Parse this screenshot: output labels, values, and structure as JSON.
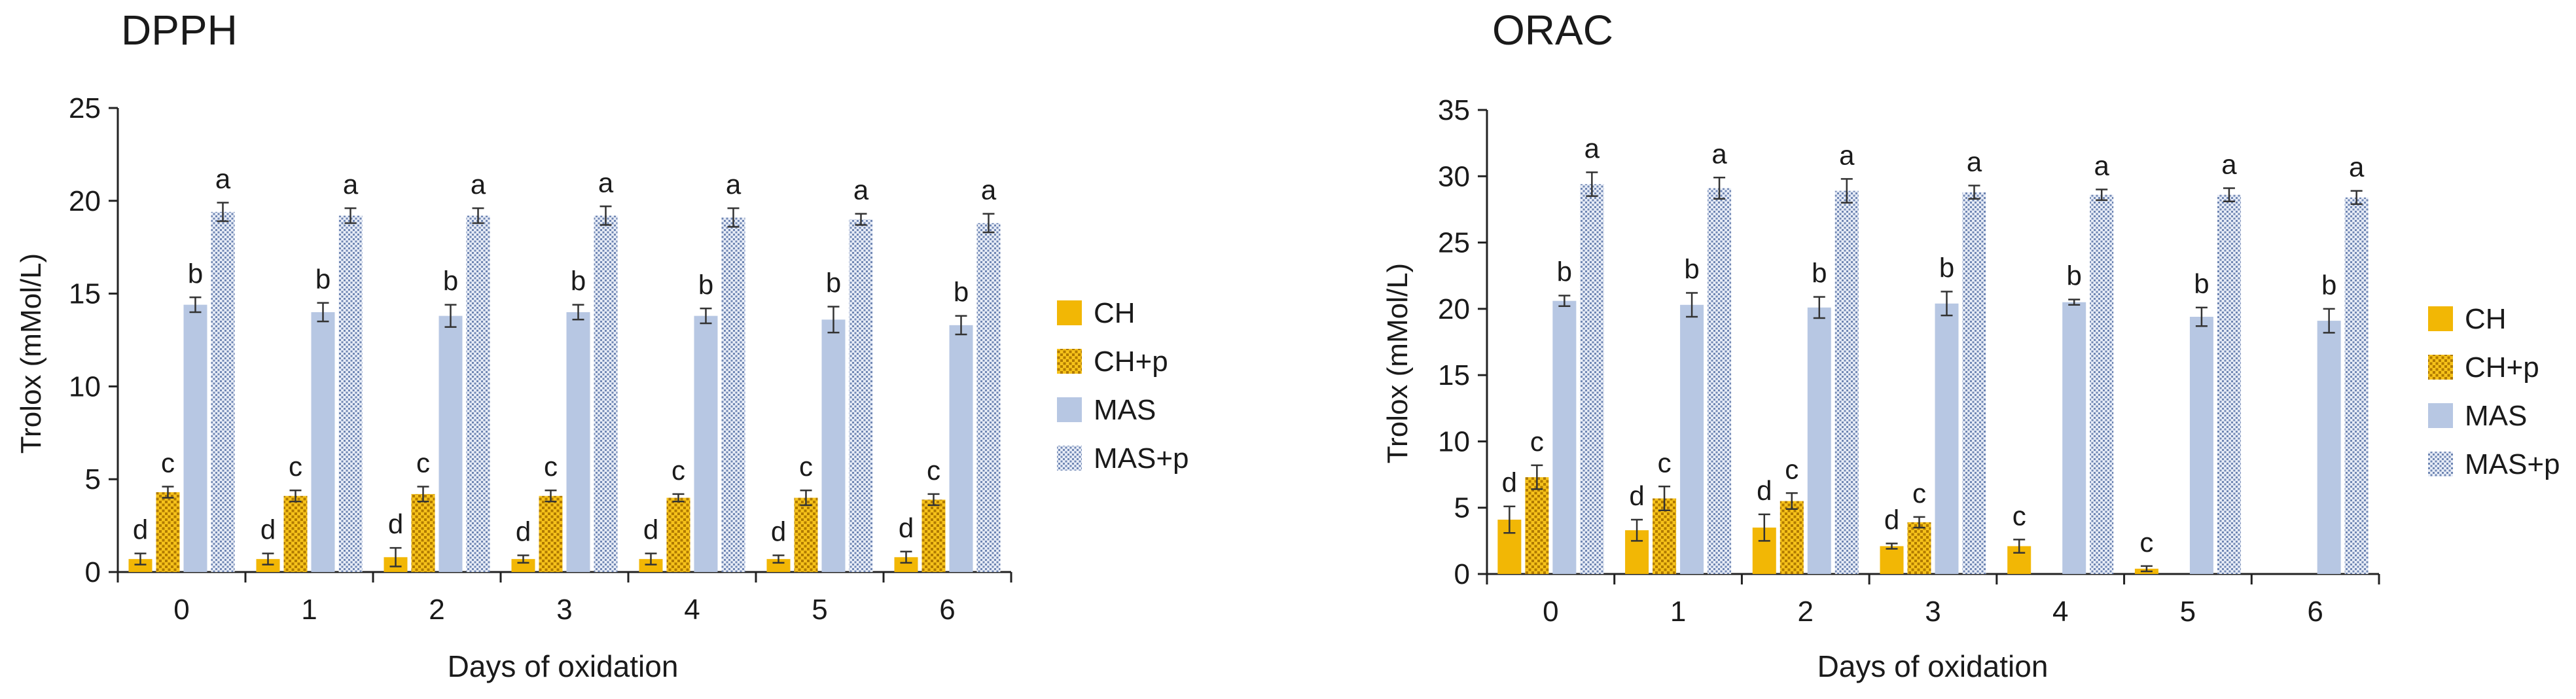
{
  "colors": {
    "CH": "#F2B705",
    "CH_p_base": "#F6C21A",
    "CH_p_dot": "#B07A00",
    "MAS": "#B7C7E3",
    "MAS_p_base": "#E8EDF7",
    "MAS_p_dot": "#6F86B3",
    "axis": "#222222",
    "error": "#333333"
  },
  "chart_data": [
    {
      "type": "bar",
      "title": "DPPH",
      "xlabel": "Days of oxidation",
      "ylabel": "Trolox (mMol/L)",
      "ylim": [
        0,
        25
      ],
      "yticks": [
        0,
        5,
        10,
        15,
        20,
        25
      ],
      "grid": false,
      "legend_position": "right",
      "categories": [
        "0",
        "1",
        "2",
        "3",
        "4",
        "5",
        "6"
      ],
      "series": [
        {
          "name": "CH",
          "values": [
            0.7,
            0.7,
            0.8,
            0.7,
            0.7,
            0.7,
            0.8
          ],
          "errors": [
            0.3,
            0.3,
            0.5,
            0.2,
            0.3,
            0.2,
            0.3
          ],
          "labels": [
            "d",
            "d",
            "d",
            "d",
            "d",
            "d",
            "d"
          ]
        },
        {
          "name": "CH+p",
          "values": [
            4.3,
            4.1,
            4.2,
            4.1,
            4.0,
            4.0,
            3.9
          ],
          "errors": [
            0.3,
            0.3,
            0.4,
            0.3,
            0.2,
            0.4,
            0.3
          ],
          "labels": [
            "c",
            "c",
            "c",
            "c",
            "c",
            "c",
            "c"
          ]
        },
        {
          "name": "MAS",
          "values": [
            14.4,
            14.0,
            13.8,
            14.0,
            13.8,
            13.6,
            13.3
          ],
          "errors": [
            0.4,
            0.5,
            0.6,
            0.4,
            0.4,
            0.7,
            0.5
          ],
          "labels": [
            "b",
            "b",
            "b",
            "b",
            "b",
            "b",
            "b"
          ]
        },
        {
          "name": "MAS+p",
          "values": [
            19.4,
            19.2,
            19.2,
            19.2,
            19.1,
            19.0,
            18.8
          ],
          "errors": [
            0.5,
            0.4,
            0.4,
            0.5,
            0.5,
            0.3,
            0.5
          ],
          "labels": [
            "a",
            "a",
            "a",
            "a",
            "a",
            "a",
            "a"
          ]
        }
      ]
    },
    {
      "type": "bar",
      "title": "ORAC",
      "xlabel": "Days of oxidation",
      "ylabel": "Trolox (mMol/L)",
      "ylim": [
        0,
        35
      ],
      "yticks": [
        0,
        5,
        10,
        15,
        20,
        25,
        30,
        35
      ],
      "grid": false,
      "legend_position": "right",
      "categories": [
        "0",
        "1",
        "2",
        "3",
        "4",
        "5",
        "6"
      ],
      "series": [
        {
          "name": "CH",
          "values": [
            4.1,
            3.3,
            3.5,
            2.1,
            2.1,
            0.4,
            null
          ],
          "errors": [
            1.0,
            0.8,
            1.0,
            0.2,
            0.5,
            0.2,
            null
          ],
          "labels": [
            "d",
            "d",
            "d",
            "d",
            "c",
            "c",
            ""
          ]
        },
        {
          "name": "CH+p",
          "values": [
            7.3,
            5.7,
            5.5,
            3.9,
            null,
            null,
            null
          ],
          "errors": [
            0.9,
            0.9,
            0.6,
            0.4,
            null,
            null,
            null
          ],
          "labels": [
            "c",
            "c",
            "c",
            "c",
            "",
            "",
            ""
          ]
        },
        {
          "name": "MAS",
          "values": [
            20.6,
            20.3,
            20.1,
            20.4,
            20.5,
            19.4,
            19.1
          ],
          "errors": [
            0.4,
            0.9,
            0.8,
            0.9,
            0.2,
            0.7,
            0.9
          ],
          "labels": [
            "b",
            "b",
            "b",
            "b",
            "b",
            "b",
            "b"
          ]
        },
        {
          "name": "MAS+p",
          "values": [
            29.4,
            29.1,
            28.9,
            28.8,
            28.6,
            28.6,
            28.4
          ],
          "errors": [
            0.9,
            0.8,
            0.9,
            0.5,
            0.4,
            0.5,
            0.5
          ],
          "labels": [
            "a",
            "a",
            "a",
            "a",
            "a",
            "a",
            "a"
          ]
        }
      ]
    }
  ]
}
